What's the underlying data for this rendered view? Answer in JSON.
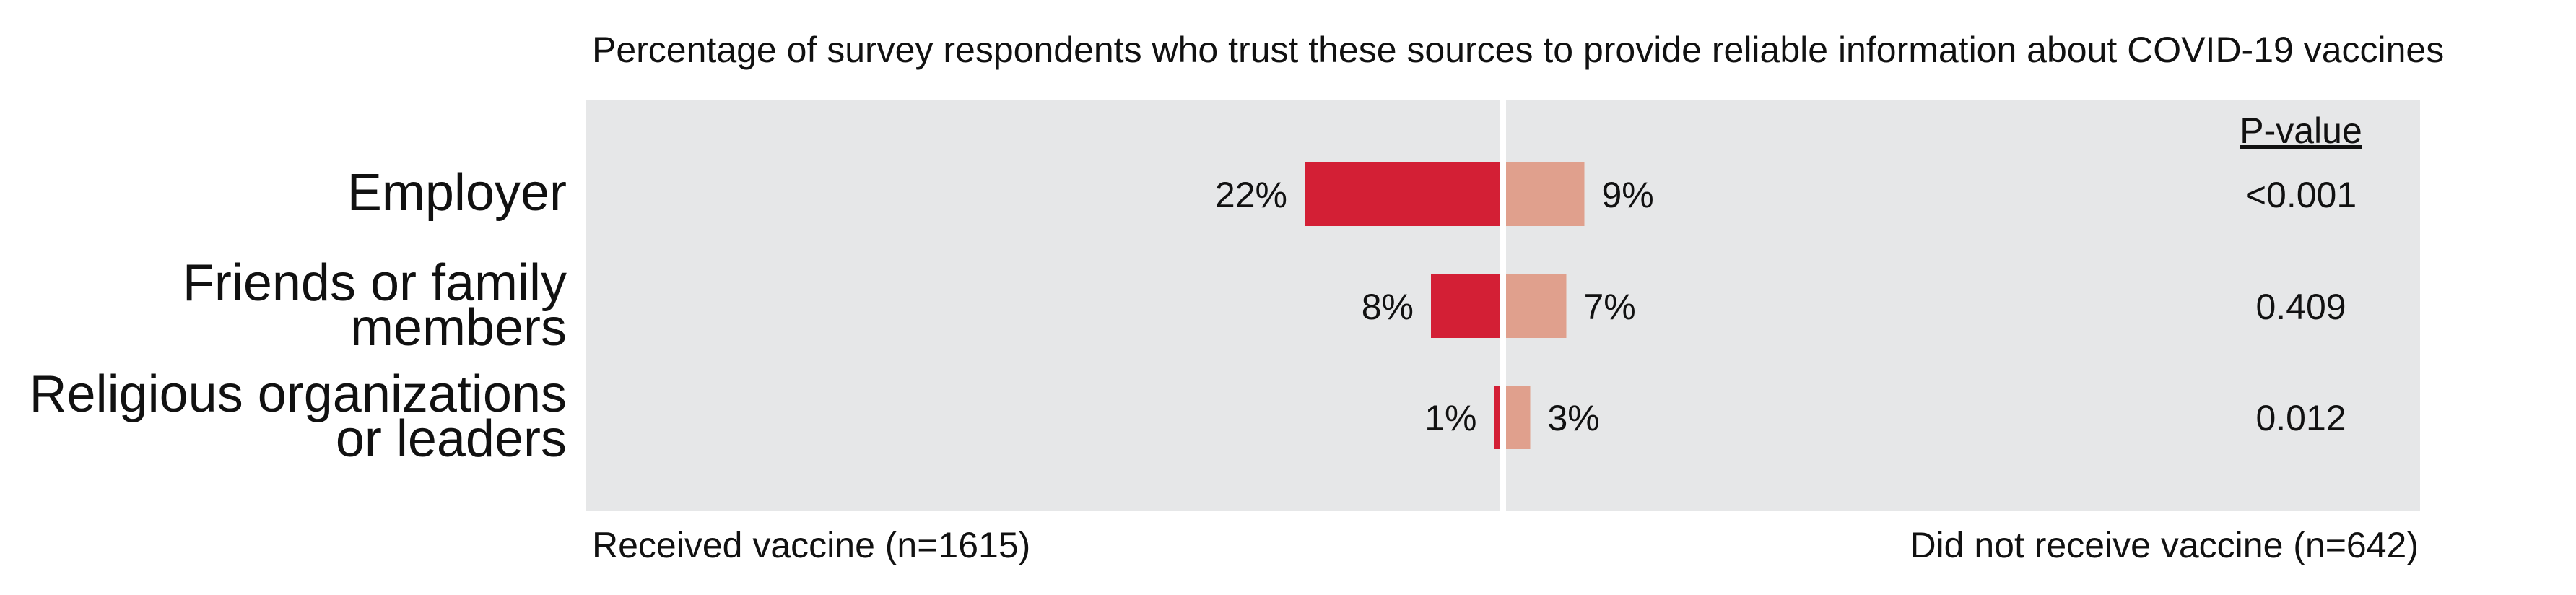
{
  "chart_data": {
    "type": "bar",
    "title": "Percentage of survey respondents who trust these sources to provide reliable information about COVID-19 vaccines",
    "categories": [
      [
        "Employer"
      ],
      [
        "Friends or family",
        "members"
      ],
      [
        "Religious organizations",
        "or leaders"
      ]
    ],
    "series": [
      {
        "name": "Received vaccine (n=1615)",
        "values": [
          22,
          8,
          1
        ],
        "labels": [
          "22%",
          "8%",
          "1%"
        ],
        "color": "#d31f35"
      },
      {
        "name": "Did not receive vaccine (n=642)",
        "values": [
          9,
          7,
          3
        ],
        "labels": [
          "9%",
          "7%",
          "3%"
        ],
        "color": "#e0a08d"
      }
    ],
    "pvalue_header": "P-value",
    "pvalues": [
      "<0.001",
      "0.409",
      "0.012"
    ],
    "panel_color": "#e6e7e8",
    "divider_color": "#ffffff"
  }
}
